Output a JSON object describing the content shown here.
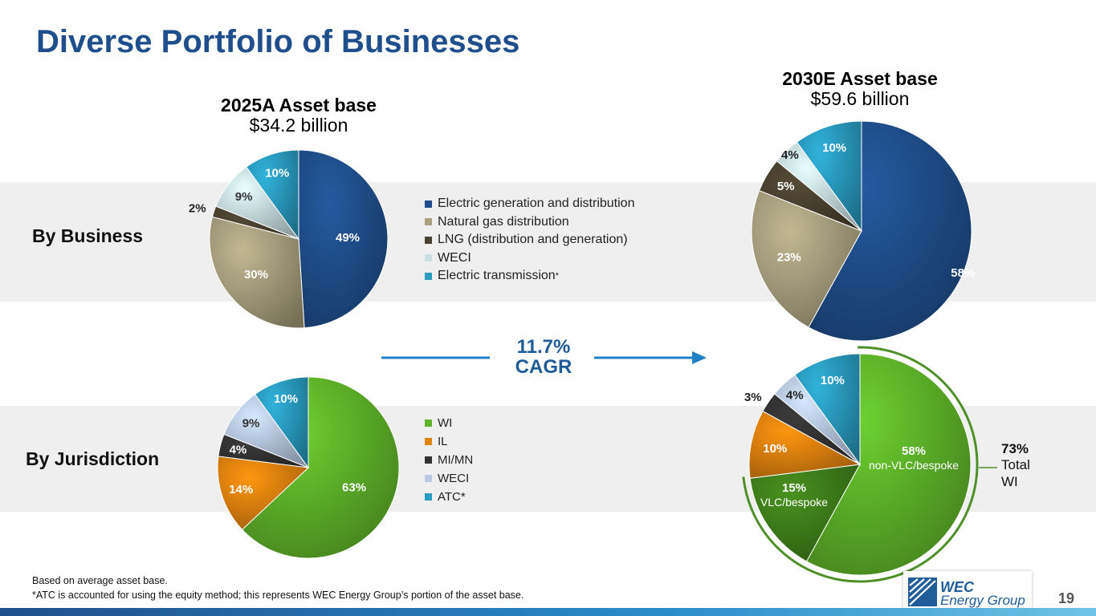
{
  "title": "Diverse Portfolio of Businesses",
  "rows": {
    "business": "By Business",
    "jurisdiction": "By Jurisdiction"
  },
  "cagr": {
    "value": "11.7%",
    "label": "CAGR"
  },
  "total_wi": {
    "value": "73%",
    "label_line1": "Total",
    "label_line2": "WI"
  },
  "footnote": {
    "line1": "Based on average asset base.",
    "line2": "*ATC is accounted for using the equity method; this represents WEC Energy Group’s portion of the asset base."
  },
  "page_number": "19",
  "logo": {
    "line1": "WEC",
    "line2": "Energy Group"
  },
  "legend_business": [
    {
      "label": "Electric generation and distribution",
      "suffix": "",
      "color": "#1f4e8c"
    },
    {
      "label": "Natural gas distribution",
      "suffix": "",
      "color": "#a8a07e"
    },
    {
      "label": "LNG (distribution and generation)",
      "suffix": "",
      "color": "#4a4130"
    },
    {
      "label": "WECI",
      "suffix": "",
      "color": "#c9dde3"
    },
    {
      "label": "Electric transmission",
      "suffix": "*",
      "color": "#2a9cc0"
    }
  ],
  "legend_juris": [
    {
      "label": "WI",
      "color": "#5fb52a"
    },
    {
      "label": "IL",
      "color": "#e0820e"
    },
    {
      "label": "MI/MN",
      "color": "#333333"
    },
    {
      "label": "WECI",
      "color": "#b9c9e4"
    },
    {
      "label": "ATC*",
      "color": "#2a9cc0"
    }
  ],
  "chart_data": [
    {
      "type": "pie",
      "title": "2025A Asset base",
      "subtitle": "$34.2 billion",
      "categories": [
        "Electric generation and distribution",
        "Natural gas distribution",
        "LNG (distribution and generation)",
        "WECI",
        "Electric transmission*"
      ],
      "values": [
        49,
        30,
        2,
        9,
        10
      ],
      "labels": [
        "49%",
        "30%",
        "2%",
        "9%",
        "10%"
      ],
      "colors": [
        "#1f4e8c",
        "#a8a07e",
        "#4a4130",
        "#c9dde3",
        "#2a9cc0"
      ]
    },
    {
      "type": "pie",
      "title": "2030E Asset base",
      "subtitle": "$59.6 billion",
      "categories": [
        "Electric generation and distribution",
        "Natural gas distribution",
        "LNG (distribution and generation)",
        "WECI",
        "Electric transmission*"
      ],
      "values": [
        58,
        23,
        5,
        4,
        10
      ],
      "labels": [
        "58%",
        "23%",
        "5%",
        "4%",
        "10%"
      ],
      "colors": [
        "#1f4e8c",
        "#a8a07e",
        "#4a4130",
        "#c9dde3",
        "#2a9cc0"
      ]
    },
    {
      "type": "pie",
      "title": "",
      "categories": [
        "WI",
        "IL",
        "MI/MN",
        "WECI",
        "ATC*"
      ],
      "values": [
        63,
        14,
        4,
        9,
        10
      ],
      "labels": [
        "63%",
        "14%",
        "4%",
        "9%",
        "10%"
      ],
      "colors": [
        "#5fb52a",
        "#e0820e",
        "#333333",
        "#b9c9e4",
        "#2a9cc0"
      ]
    },
    {
      "type": "pie",
      "title": "",
      "categories": [
        "non-VLC/bespoke",
        "VLC/bespoke",
        "IL",
        "MI/MN",
        "WECI",
        "ATC*"
      ],
      "values": [
        58,
        15,
        10,
        3,
        4,
        10
      ],
      "labels": [
        "58%",
        "15%",
        "10%",
        "3%",
        "4%",
        "10%"
      ],
      "sublabels": [
        "non-VLC/bespoke",
        "VLC/bespoke",
        "",
        "",
        "",
        ""
      ],
      "colors": [
        "#5fb52a",
        "#3f7f1a",
        "#e0820e",
        "#333333",
        "#b9c9e4",
        "#2a9cc0"
      ]
    }
  ]
}
